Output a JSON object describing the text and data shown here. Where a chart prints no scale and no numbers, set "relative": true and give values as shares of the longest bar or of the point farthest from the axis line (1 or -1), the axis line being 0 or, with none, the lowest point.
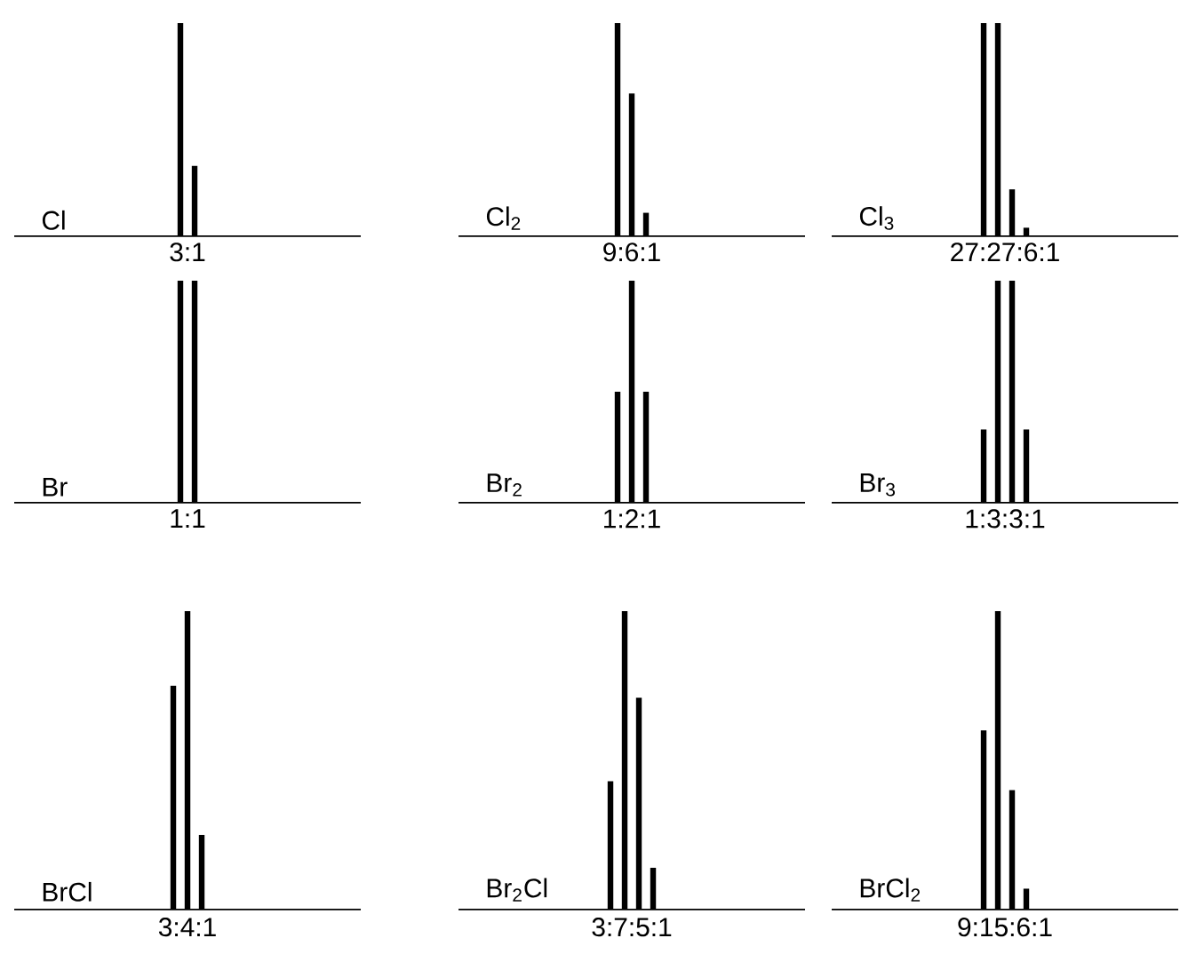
{
  "chart_data": [
    {
      "type": "bar",
      "title": "Cl",
      "categories": [
        null,
        null
      ],
      "values": [
        1,
        0.33
      ],
      "color": "#000000",
      "relative": true,
      "annotations": [
        "3:1"
      ]
    },
    {
      "type": "bar",
      "title": "Cl$_{2}$",
      "categories": [
        null,
        null,
        null
      ],
      "values": [
        1,
        0.67,
        0.11
      ],
      "color": "#000000",
      "relative": true,
      "annotations": [
        "9:6:1"
      ]
    },
    {
      "type": "bar",
      "title": "Cl$_{3}$",
      "categories": [
        null,
        null,
        null,
        null
      ],
      "values": [
        1,
        1,
        0.22,
        0.04
      ],
      "color": "#000000",
      "relative": true,
      "annotations": [
        "27:27:6:1"
      ]
    },
    {
      "type": "bar",
      "title": "Br",
      "categories": [
        null,
        null
      ],
      "values": [
        1,
        1
      ],
      "color": "#000000",
      "relative": true,
      "annotations": [
        "1:1"
      ]
    },
    {
      "type": "bar",
      "title": "Br$_{2}$",
      "categories": [
        null,
        null,
        null
      ],
      "values": [
        0.5,
        1,
        0.5
      ],
      "color": "#000000",
      "relative": true,
      "annotations": [
        "1:2:1"
      ]
    },
    {
      "type": "bar",
      "title": "Br$_{3}$",
      "categories": [
        null,
        null,
        null,
        null
      ],
      "values": [
        0.33,
        1,
        1,
        0.33
      ],
      "color": "#000000",
      "relative": true,
      "annotations": [
        "1:3:3:1"
      ]
    },
    {
      "type": "bar",
      "title": "BrCl",
      "categories": [
        null,
        null,
        null
      ],
      "values": [
        0.75,
        1,
        0.25
      ],
      "color": "#000000",
      "relative": true,
      "annotations": [
        "3:4:1"
      ]
    },
    {
      "type": "bar",
      "title": "Br$_{2}$Cl",
      "categories": [
        null,
        null,
        null,
        null
      ],
      "values": [
        0.43,
        1,
        0.71,
        0.14
      ],
      "color": "#000000",
      "relative": true,
      "annotations": [
        "3:7:5:1"
      ]
    },
    {
      "type": "bar",
      "title": "BrCl$_{2}$",
      "categories": [
        null,
        null,
        null,
        null
      ],
      "values": [
        0.6,
        1,
        0.4,
        0.07
      ],
      "color": "#000000",
      "relative": true,
      "annotations": [
        "9:15:6:1"
      ]
    }
  ]
}
